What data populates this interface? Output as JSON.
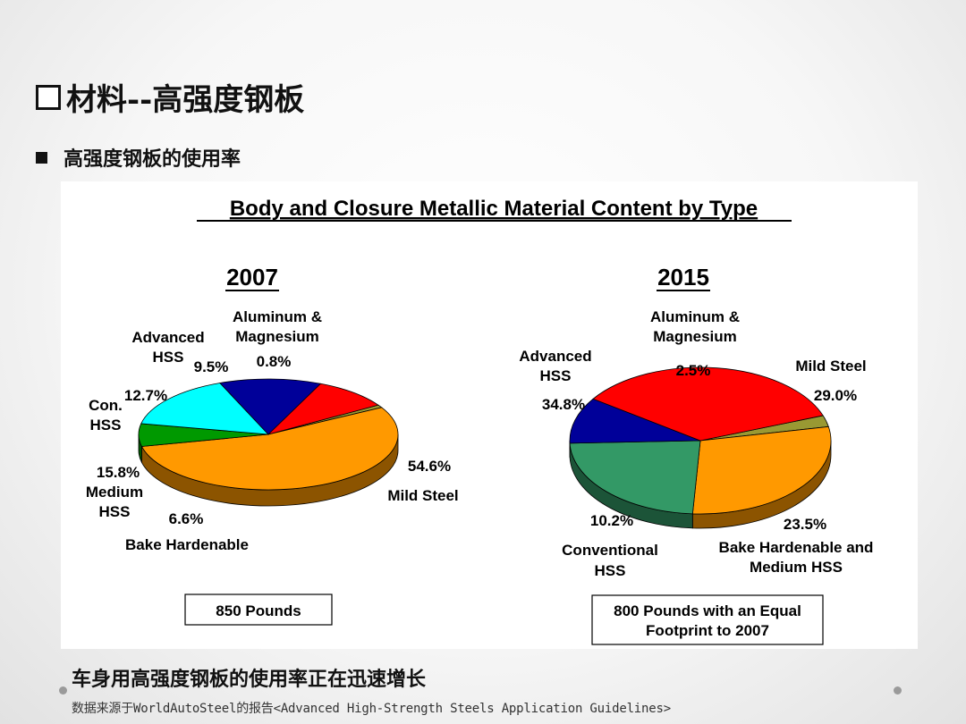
{
  "slide": {
    "title": "材料--高强度钢板",
    "bullet": "高强度钢板的使用率",
    "conclusion": "车身用高强度钢板的使用率正在迅速增长",
    "source": "数据来源于WorldAutoSteel的报告<Advanced High-Strength Steels Application Guidelines>"
  },
  "chart_data": {
    "type": "pie",
    "title": "Body and Closure Metallic Material Content by Type",
    "charts": [
      {
        "year": "2007",
        "total": "850 Pounds",
        "slices": [
          {
            "label": "Mild Steel",
            "value_text": "54.6%",
            "value": 54.6,
            "color": "#ff9900"
          },
          {
            "label": "Bake Hardenable",
            "value_text": "6.6%",
            "value": 6.6,
            "color": "#009900"
          },
          {
            "label": "Medium HSS",
            "value_text": "15.8%",
            "value": 15.8,
            "color": "#00ffff"
          },
          {
            "label": "Con. HSS",
            "value_text": "12.7%",
            "value": 12.7,
            "color": "#000099"
          },
          {
            "label": "Advanced HSS",
            "value_text": "9.5%",
            "value": 9.5,
            "color": "#ff0000"
          },
          {
            "label": "Aluminum & Magnesium",
            "value_text": "0.8%",
            "value": 0.8,
            "color": "#999933"
          }
        ]
      },
      {
        "year": "2015",
        "total": "800 Pounds with an Equal Footprint to 2007",
        "slices": [
          {
            "label": "Mild Steel",
            "value_text": "29.0%",
            "value": 29.0,
            "color": "#ff9900"
          },
          {
            "label": "Bake Hardenable and Medium HSS",
            "value_text": "23.5%",
            "value": 23.5,
            "color": "#339966"
          },
          {
            "label": "Conventional HSS",
            "value_text": "10.2%",
            "value": 10.2,
            "color": "#000099"
          },
          {
            "label": "Advanced HSS",
            "value_text": "34.8%",
            "value": 34.8,
            "color": "#ff0000"
          },
          {
            "label": "Aluminum & Magnesium",
            "value_text": "2.5%",
            "value": 2.5,
            "color": "#999933"
          }
        ]
      }
    ],
    "labels": {
      "c0_al_1": "Aluminum &",
      "c0_al_2": "Magnesium",
      "c0_ahss_1": "Advanced",
      "c0_ahss_2": "HSS",
      "c0_con_1": "Con.",
      "c0_con_2": "HSS",
      "c0_med_1": "Medium",
      "c0_med_2": "HSS",
      "c0_bake": "Bake Hardenable",
      "c0_mild": "Mild Steel",
      "c1_al_1": "Aluminum &",
      "c1_al_2": "Magnesium",
      "c1_ahss_1": "Advanced",
      "c1_ahss_2": "HSS",
      "c1_mild": "Mild Steel",
      "c1_conv_1": "Conventional",
      "c1_conv_2": "HSS",
      "c1_bake_1": "Bake Hardenable and",
      "c1_bake_2": "Medium HSS",
      "c1_total_1": "800 Pounds with an Equal",
      "c1_total_2": "Footprint to 2007"
    }
  }
}
